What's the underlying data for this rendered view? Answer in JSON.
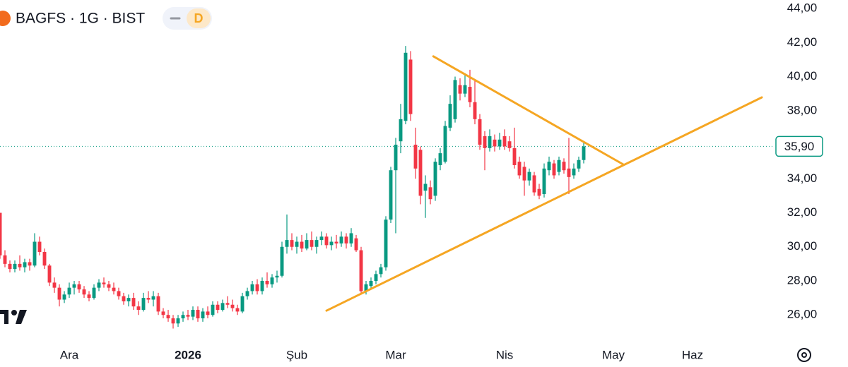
{
  "chart_data": {
    "type": "candlestick",
    "title": "BAGFS · 1G · BIST",
    "interval_badge": "D",
    "up_color": "#089981",
    "down_color": "#f23645",
    "xlim": [
      0,
      155
    ],
    "xticks": [
      {
        "value": 14,
        "label": "Ara"
      },
      {
        "value": 38,
        "label": "2026"
      },
      {
        "value": 60,
        "label": "Şub"
      },
      {
        "value": 80,
        "label": "Mar"
      },
      {
        "value": 102,
        "label": "Nis"
      },
      {
        "value": 124,
        "label": "May"
      },
      {
        "value": 140,
        "label": "Haz"
      }
    ],
    "ylim": [
      24.6,
      44.5
    ],
    "yticks": [
      {
        "value": 26,
        "label": "26,00"
      },
      {
        "value": 28,
        "label": "28,00"
      },
      {
        "value": 30,
        "label": "30,00"
      },
      {
        "value": 32,
        "label": "32,00"
      },
      {
        "value": 34,
        "label": "34,00"
      },
      {
        "value": 36,
        "label": "36,00"
      },
      {
        "value": 38,
        "label": "38,00"
      },
      {
        "value": 40,
        "label": "40,00"
      },
      {
        "value": 42,
        "label": "42,00"
      },
      {
        "value": 44,
        "label": "44,00"
      }
    ],
    "current_price": {
      "value": 35.9,
      "label": "35,90"
    },
    "trendline_color": "#f5a623",
    "trendlines": [
      {
        "x": [
          66,
          154
        ],
        "y": [
          26.25,
          38.78
        ]
      },
      {
        "x": [
          87.6,
          126
        ],
        "y": [
          41.19,
          34.84
        ]
      }
    ],
    "ohlc": [
      [
        32,
        32,
        29.3,
        29.5
      ],
      [
        29.5,
        29.8,
        28.8,
        29
      ],
      [
        29,
        29.2,
        28.5,
        28.7
      ],
      [
        28.7,
        29.2,
        28.5,
        29
      ],
      [
        29,
        29.5,
        28.6,
        28.8
      ],
      [
        28.8,
        29.3,
        28.5,
        29.1
      ],
      [
        29.1,
        29.3,
        28.6,
        28.9
      ],
      [
        28.9,
        30.8,
        28.8,
        30.3
      ],
      [
        30.3,
        30.6,
        29.5,
        29.7
      ],
      [
        29.7,
        29.9,
        28.7,
        28.9
      ],
      [
        28.9,
        29,
        27.7,
        27.9
      ],
      [
        27.9,
        28.2,
        27.3,
        27.6
      ],
      [
        27.6,
        27.8,
        26.5,
        26.9
      ],
      [
        26.9,
        27.4,
        26.7,
        27.2
      ],
      [
        27.2,
        27.9,
        27,
        27.6
      ],
      [
        27.6,
        28,
        27.2,
        27.8
      ],
      [
        27.8,
        28,
        27.3,
        27.5
      ],
      [
        27.5,
        27.7,
        27,
        27.2
      ],
      [
        27.2,
        27.4,
        26.8,
        27
      ],
      [
        27,
        27.8,
        26.9,
        27.6
      ],
      [
        27.6,
        28.1,
        27.4,
        27.9
      ],
      [
        27.9,
        28.2,
        27.6,
        27.8
      ],
      [
        27.8,
        28,
        27.4,
        27.6
      ],
      [
        27.6,
        27.9,
        27.2,
        27.4
      ],
      [
        27.4,
        27.6,
        26.9,
        27.1
      ],
      [
        27.1,
        27.3,
        26.6,
        26.8
      ],
      [
        26.8,
        27.2,
        26.5,
        27
      ],
      [
        27,
        27.3,
        26.3,
        26.5
      ],
      [
        26.5,
        26.8,
        26,
        26.3
      ],
      [
        26.3,
        27.3,
        26.2,
        27
      ],
      [
        27,
        27.4,
        26.7,
        26.9
      ],
      [
        26.9,
        27.4,
        26.5,
        27.1
      ],
      [
        27.1,
        27.3,
        26,
        26.2
      ],
      [
        26.2,
        26.4,
        25.8,
        26
      ],
      [
        26,
        26.3,
        25.6,
        25.8
      ],
      [
        25.8,
        26,
        25.2,
        25.5
      ],
      [
        25.5,
        26,
        25.3,
        25.8
      ],
      [
        25.8,
        26.2,
        25.6,
        26
      ],
      [
        26,
        26.3,
        25.7,
        25.9
      ],
      [
        25.9,
        26.5,
        25.7,
        26.3
      ],
      [
        26.3,
        26.5,
        25.6,
        25.8
      ],
      [
        25.8,
        26.4,
        25.6,
        26.2
      ],
      [
        26.2,
        26.5,
        25.8,
        26
      ],
      [
        26,
        26.8,
        25.9,
        26.6
      ],
      [
        26.6,
        26.8,
        26.1,
        26.3
      ],
      [
        26.3,
        26.9,
        26.2,
        26.7
      ],
      [
        26.7,
        27.1,
        26.4,
        26.6
      ],
      [
        26.6,
        26.9,
        26.2,
        26.4
      ],
      [
        26.4,
        26.6,
        26,
        26.2
      ],
      [
        26.2,
        27.3,
        26.1,
        27.1
      ],
      [
        27.1,
        27.6,
        26.9,
        27.4
      ],
      [
        27.4,
        28,
        27.2,
        27.8
      ],
      [
        27.8,
        28.1,
        27.2,
        27.4
      ],
      [
        27.4,
        28.2,
        27.2,
        28
      ],
      [
        28,
        28.5,
        27.6,
        27.8
      ],
      [
        27.8,
        28.4,
        27.6,
        28.2
      ],
      [
        28.2,
        28.6,
        27.9,
        28.3
      ],
      [
        28.3,
        30.3,
        28.2,
        30
      ],
      [
        30,
        31.9,
        29.6,
        30.4
      ],
      [
        30.4,
        30.8,
        29.8,
        30
      ],
      [
        30,
        30.6,
        29.6,
        30.3
      ],
      [
        30.3,
        30.7,
        29.7,
        29.9
      ],
      [
        29.9,
        30.8,
        29.8,
        30.4
      ],
      [
        30.4,
        30.9,
        29.8,
        30
      ],
      [
        30,
        30.6,
        29.6,
        30.4
      ],
      [
        30.4,
        30.9,
        30.1,
        30.6
      ],
      [
        30.6,
        30.8,
        29.9,
        30.1
      ],
      [
        30.1,
        30.6,
        29.8,
        30.3
      ],
      [
        30.3,
        30.7,
        29.9,
        30.2
      ],
      [
        30.2,
        30.9,
        30,
        30.6
      ],
      [
        30.6,
        30.8,
        29.9,
        30.2
      ],
      [
        30.2,
        31.1,
        30,
        30.8
      ],
      [
        30.5,
        30.7,
        29.7,
        29.8
      ],
      [
        29.8,
        30,
        27.3,
        27.4
      ],
      [
        27.4,
        28,
        27.2,
        27.8
      ],
      [
        27.7,
        28.2,
        27.5,
        28
      ],
      [
        28,
        28.6,
        27.8,
        28.4
      ],
      [
        28.4,
        29,
        28.2,
        28.8
      ],
      [
        28.8,
        31.8,
        28.6,
        31.6
      ],
      [
        31.6,
        34.7,
        31.4,
        34.5
      ],
      [
        34.5,
        36.4,
        30.8,
        36
      ],
      [
        36.2,
        38.4,
        35.5,
        37.5
      ],
      [
        37.4,
        41.8,
        37.2,
        41.4
      ],
      [
        41,
        41.5,
        37.4,
        37.8
      ],
      [
        36,
        37,
        34,
        34.6
      ],
      [
        35.7,
        35.9,
        32.5,
        33
      ],
      [
        33.3,
        34.2,
        31.7,
        33.7
      ],
      [
        33.5,
        33.9,
        32.5,
        32.8
      ],
      [
        33,
        35.2,
        32.7,
        35
      ],
      [
        34.8,
        35.8,
        34.5,
        35.5
      ],
      [
        35,
        37.4,
        34.9,
        37.1
      ],
      [
        37,
        38.9,
        36.8,
        38.4
      ],
      [
        37.5,
        40,
        37.3,
        39.8
      ],
      [
        39.5,
        39.9,
        38.6,
        39
      ],
      [
        39,
        40.2,
        38.8,
        39.5
      ],
      [
        39.4,
        40.4,
        38.2,
        38.5
      ],
      [
        38.5,
        39.8,
        37.2,
        37.5
      ],
      [
        37.5,
        37.8,
        35.7,
        36
      ],
      [
        36.5,
        36.8,
        34.5,
        35.8
      ],
      [
        35.8,
        36.9,
        35.6,
        36.5
      ],
      [
        36.3,
        36.6,
        35.6,
        35.9
      ],
      [
        35.9,
        36.7,
        35.7,
        36.3
      ],
      [
        36.5,
        36.9,
        35.7,
        35.9
      ],
      [
        36.2,
        36.5,
        35.6,
        35.8
      ],
      [
        35.8,
        37,
        34.6,
        34.8
      ],
      [
        35,
        35.3,
        34,
        34.2
      ],
      [
        34.7,
        35,
        33,
        33.9
      ],
      [
        33.9,
        34.6,
        33.6,
        34.4
      ],
      [
        34.2,
        34.4,
        33,
        33.2
      ],
      [
        33.4,
        33.7,
        32.8,
        33
      ],
      [
        33.1,
        34.9,
        32.9,
        34.6
      ],
      [
        34.5,
        35.3,
        34.2,
        35
      ],
      [
        34.9,
        35.1,
        34,
        34.2
      ],
      [
        34.4,
        35.3,
        34.2,
        35.1
      ],
      [
        35,
        35.2,
        34.3,
        34.5
      ],
      [
        34.6,
        36.4,
        33.1,
        34.1
      ],
      [
        34.2,
        34.9,
        34,
        34.6
      ],
      [
        34.6,
        35.3,
        34.4,
        35.1
      ],
      [
        35.1,
        36.1,
        34.9,
        35.9
      ]
    ]
  }
}
